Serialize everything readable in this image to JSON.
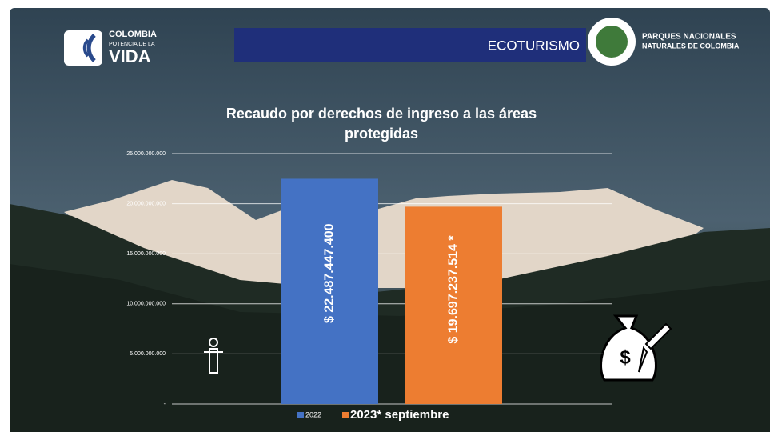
{
  "slide": {
    "logo_line1": "COLOMBIA",
    "logo_line2": "POTENCIA DE LA",
    "logo_line3": "VIDA",
    "banner": "ECOTURISMO",
    "org_line1": "PARQUES NACIONALES",
    "org_line2": "NATURALES DE COLOMBIA"
  },
  "chart_data": {
    "type": "bar",
    "title": "Recaudo por derechos de ingreso a las áreas protegidas",
    "series": [
      {
        "name": "2022",
        "color": "#4472c4",
        "values": [
          22487447400
        ],
        "value_labels": [
          "$ 22.487.447.400"
        ]
      },
      {
        "name": "2023* septiembre",
        "color": "#ed7d31",
        "values": [
          19697237514
        ],
        "value_labels": [
          "$ 19.697.237.514 *"
        ]
      }
    ],
    "ylim": [
      0,
      25000000000
    ],
    "yticks": [
      {
        "value": 0,
        "label": "-"
      },
      {
        "value": 5000000000,
        "label": "5.000.000.000"
      },
      {
        "value": 10000000000,
        "label": "10.000.000.000"
      },
      {
        "value": 15000000000,
        "label": "15.000.000.000"
      },
      {
        "value": 20000000000,
        "label": "20.000.000.000"
      },
      {
        "value": 25000000000,
        "label": "25.000.000.000"
      }
    ],
    "grid": true,
    "legend": "bottom"
  }
}
